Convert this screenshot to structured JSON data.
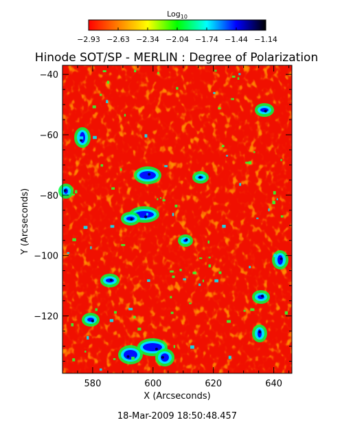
{
  "chart_data": {
    "type": "heatmap",
    "title": "Hinode SOT/SP - MERLIN : Degree of Polarization",
    "xlabel": "X (Arcseconds)",
    "ylabel": "Y (Arcseconds)",
    "xlim": [
      570,
      646
    ],
    "ylim": [
      -139,
      -37
    ],
    "xticks": [
      580,
      600,
      620,
      640
    ],
    "yticks": [
      -40,
      -60,
      -80,
      -100,
      -120
    ],
    "colorbar": {
      "label_main": "Log",
      "label_sub": "10",
      "scale": "log10",
      "ticks": [
        "-2.93",
        "-2.63",
        "-2.34",
        "-2.04",
        "-1.74",
        "-1.44",
        "-1.14"
      ],
      "range": [
        -2.93,
        -1.14
      ],
      "colors": [
        "#ff0000",
        "#ff8000",
        "#ffff00",
        "#00ff00",
        "#00ffff",
        "#0000ff",
        "#000000"
      ]
    },
    "grid": false,
    "timestamp": "18-Mar-2009 18:50:48.457"
  }
}
